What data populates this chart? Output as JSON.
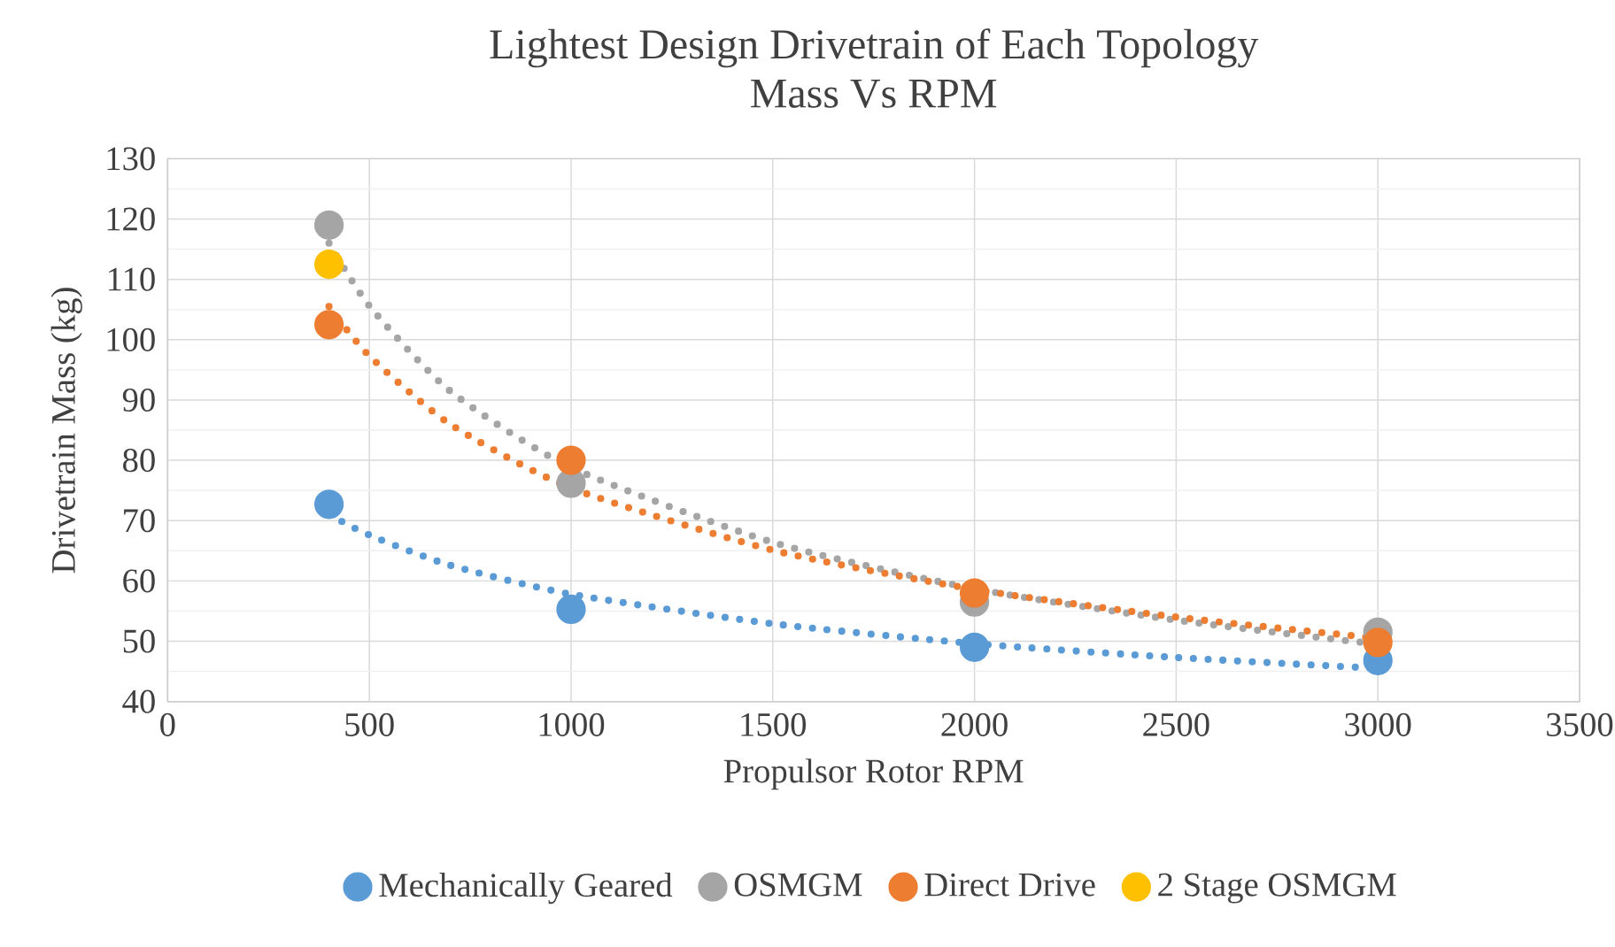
{
  "chart_data": {
    "type": "scatter",
    "title": "Lightest Design Drivetrain of Each Topology",
    "subtitle": "Mass Vs RPM",
    "xlabel": "Propulsor Rotor RPM",
    "ylabel": "Drivetrain Mass (kg)",
    "xlim": [
      0,
      3500
    ],
    "xticks": [
      0,
      500,
      1000,
      1500,
      2000,
      2500,
      3000,
      3500
    ],
    "ylim": [
      40,
      130
    ],
    "yticks": [
      40,
      50,
      60,
      70,
      80,
      90,
      100,
      110,
      120,
      130
    ],
    "grid": true,
    "legend": "bottom",
    "series": [
      {
        "name": "Mechanically Geared",
        "marker": "circle",
        "color": "#5b9bd5",
        "x": [
          400,
          1000,
          2000,
          3000
        ],
        "values": [
          72.7,
          55.3,
          49,
          46.8
        ]
      },
      {
        "name": "OSMGM",
        "marker": "circle",
        "color": "#a5a5a5",
        "x": [
          400,
          1000,
          2000,
          3000
        ],
        "values": [
          119,
          76.2,
          56.5,
          51.5
        ]
      },
      {
        "name": "Direct Drive",
        "marker": "circle",
        "color": "#ed7d31",
        "x": [
          400,
          1000,
          2000,
          3000
        ],
        "values": [
          102.5,
          80,
          58,
          49.8
        ]
      },
      {
        "name": "2 Stage OSMGM",
        "marker": "circle",
        "color": "#ffc000",
        "x": [
          400
        ],
        "values": [
          112.5
        ]
      },
      {
        "type": "line",
        "line_style": "dotted",
        "marker": "none",
        "color": "#5b9bd5",
        "x": [
          400,
          500,
          700,
          1000,
          1500,
          2000,
          2500,
          3000
        ],
        "values": [
          71,
          67.6,
          62.6,
          57.8,
          52.9,
          49.6,
          47.3,
          45.5
        ]
      },
      {
        "type": "line",
        "line_style": "dotted",
        "marker": "none",
        "color": "#a5a5a5",
        "x": [
          400,
          500,
          700,
          1000,
          1500,
          2000,
          2500,
          3000
        ],
        "values": [
          116,
          105.6,
          91.5,
          78.8,
          66.4,
          58.7,
          53.5,
          49.5
        ]
      },
      {
        "type": "line",
        "line_style": "dotted",
        "marker": "none",
        "color": "#ed7d31",
        "x": [
          400,
          500,
          700,
          1000,
          1500,
          2000,
          2500,
          3000
        ],
        "values": [
          105.5,
          97.3,
          86,
          75.4,
          65.1,
          58.6,
          54,
          50.5
        ]
      }
    ]
  }
}
